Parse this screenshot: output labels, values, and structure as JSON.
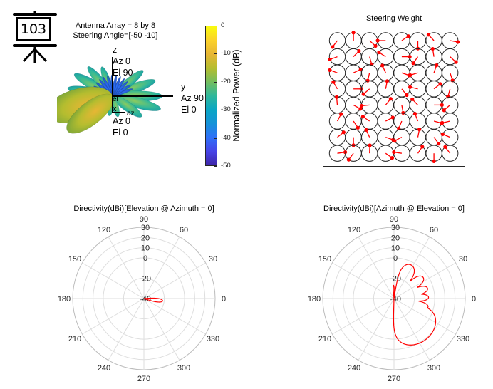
{
  "badge": {
    "number": "103",
    "icon": "presentation-board-icon"
  },
  "pattern3d": {
    "title_line1": "Antenna Array = 8 by 8",
    "title_line2": "Steering Angle=[-50 -10]",
    "axes": {
      "z": [
        "z",
        "Az 0",
        "El 90"
      ],
      "y": [
        "y",
        "Az 90",
        "El 0"
      ],
      "x": [
        "x",
        "Az 0",
        "El 0"
      ],
      "mini_labels": [
        "el",
        "az"
      ]
    }
  },
  "colorbar": {
    "label": "Normalized Power (dB)",
    "ticks": [
      "0",
      "-10",
      "-20",
      "-30",
      "-40",
      "-50"
    ],
    "range": [
      -50,
      0
    ],
    "colormap": [
      "#3e26a8",
      "#4744e7",
      "#2f70f8",
      "#1592d8",
      "#0aa6c4",
      "#2fb79a",
      "#74bd5e",
      "#b5bd2f",
      "#e7b634",
      "#fbd22b",
      "#f9fb0e"
    ]
  },
  "chart_data": [
    {
      "type": "quiver",
      "title": "Steering Weight",
      "grid_rows": 8,
      "grid_cols": 8,
      "marker_color": "#ff0000",
      "phase_deg": [
        [
          233,
          90,
          318,
          180,
          34,
          270,
          133,
          350
        ],
        [
          200,
          46,
          286,
          147,
          0,
          235,
          99,
          318
        ],
        [
          160,
          25,
          257,
          114,
          341,
          197,
          71,
          288
        ],
        [
          120,
          0,
          221,
          79,
          309,
          167,
          38,
          255
        ],
        [
          95,
          331,
          186,
          51,
          280,
          134,
          0,
          221
        ],
        [
          62,
          304,
          146,
          27,
          248,
          111,
          345,
          193
        ],
        [
          38,
          270,
          115,
          341,
          207,
          79,
          306,
          158
        ],
        [
          8,
          233,
          88,
          325,
          172,
          56,
          270,
          128
        ]
      ]
    },
    {
      "type": "polar",
      "title": "Directivity(dBi)[Elevation @ Azimuth = 0]",
      "theta_ticks": [
        "0",
        "30",
        "60",
        "90",
        "120",
        "150",
        "180",
        "210",
        "240",
        "270",
        "300",
        "330"
      ],
      "r_ticks": [
        "30",
        "20",
        "10",
        "0",
        "-20",
        "-40"
      ],
      "r_tick_values": [
        30,
        20,
        10,
        0,
        -20,
        -40
      ],
      "rlim": [
        -40,
        30
      ],
      "floor": -40,
      "color": "#ff0000",
      "lobes": [
        {
          "angle": -7,
          "peak": -21.5,
          "beamwidth": 12
        }
      ]
    },
    {
      "type": "polar",
      "title": "Directivity(dBi)[Azimuth @ Elevation = 0]",
      "theta_ticks": [
        "0",
        "30",
        "60",
        "90",
        "120",
        "150",
        "180",
        "210",
        "240",
        "270",
        "300",
        "330"
      ],
      "r_ticks": [
        "30",
        "20",
        "10",
        "0",
        "-20",
        "-40"
      ],
      "r_tick_values": [
        30,
        20,
        10,
        0,
        -20,
        -40
      ],
      "rlim": [
        -40,
        30
      ],
      "floor": -40,
      "color": "#ff0000",
      "lobes": [
        {
          "angle": -52,
          "peak": 11,
          "beamwidth": 40
        },
        {
          "angle": -14,
          "peak": -5.5,
          "beamwidth": 10
        },
        {
          "angle": 2,
          "peak": -6,
          "beamwidth": 10
        },
        {
          "angle": 17,
          "peak": -5.5,
          "beamwidth": 11
        },
        {
          "angle": 36,
          "peak": -4.6,
          "beamwidth": 13
        },
        {
          "angle": 63,
          "peak": -3,
          "beamwidth": 18
        },
        {
          "angle": 92,
          "peak": -27,
          "beamwidth": 6
        }
      ]
    }
  ]
}
